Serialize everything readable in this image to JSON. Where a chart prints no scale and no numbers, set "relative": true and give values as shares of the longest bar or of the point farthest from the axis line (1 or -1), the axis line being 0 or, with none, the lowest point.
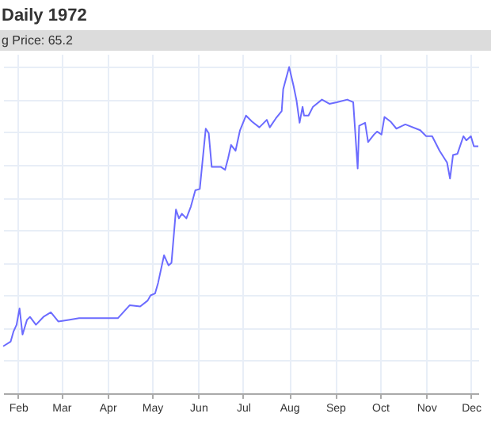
{
  "chart_data": {
    "type": "line",
    "title": "Daily 1972",
    "annotations": [
      "g Price: 65.2"
    ],
    "relative": true,
    "grid": true,
    "xlim": [
      "1972-01-22",
      "1972-12-06"
    ],
    "xticks": [
      {
        "value": "1972-02-01",
        "label": "Feb"
      },
      {
        "value": "1972-03-01",
        "label": "Mar"
      },
      {
        "value": "1972-04-01",
        "label": "Apr"
      },
      {
        "value": "1972-05-01",
        "label": "May"
      },
      {
        "value": "1972-06-01",
        "label": "Jun"
      },
      {
        "value": "1972-07-01",
        "label": "Jul"
      },
      {
        "value": "1972-08-01",
        "label": "Aug"
      },
      {
        "value": "1972-09-01",
        "label": "Sep"
      },
      {
        "value": "1972-10-01",
        "label": "Oct"
      },
      {
        "value": "1972-11-01",
        "label": "Nov"
      },
      {
        "value": "1972-12-01",
        "label": "Dec"
      }
    ],
    "x": [
      "1972-01-22",
      "1972-01-27",
      "1972-01-29",
      "1972-01-31",
      "1972-02-02",
      "1972-02-04",
      "1972-02-07",
      "1972-02-09",
      "1972-02-13",
      "1972-02-18",
      "1972-02-23",
      "1972-02-28",
      "1972-03-06",
      "1972-03-13",
      "1972-03-31",
      "1972-04-08",
      "1972-04-16",
      "1972-04-23",
      "1972-04-28",
      "1972-04-30",
      "1972-05-03",
      "1972-05-05",
      "1972-05-09",
      "1972-05-12",
      "1972-05-14",
      "1972-05-17",
      "1972-05-19",
      "1972-05-21",
      "1972-05-24",
      "1972-05-27",
      "1972-05-30",
      "1972-06-02",
      "1972-06-06",
      "1972-06-08",
      "1972-06-10",
      "1972-06-16",
      "1972-06-19",
      "1972-06-21",
      "1972-06-23",
      "1972-06-26",
      "1972-06-29",
      "1972-07-03",
      "1972-07-07",
      "1972-07-12",
      "1972-07-17",
      "1972-07-19",
      "1972-07-23",
      "1972-07-27",
      "1972-07-28",
      "1972-08-01",
      "1972-08-04",
      "1972-08-06",
      "1972-08-08",
      "1972-08-10",
      "1972-08-11",
      "1972-08-14",
      "1972-08-17",
      "1972-08-23",
      "1972-08-28",
      "1972-09-02",
      "1972-09-09",
      "1972-09-13",
      "1972-09-16",
      "1972-09-17",
      "1972-09-21",
      "1972-09-23",
      "1972-09-27",
      "1972-09-29",
      "1972-10-02",
      "1972-10-04",
      "1972-10-08",
      "1972-10-12",
      "1972-10-18",
      "1972-10-28",
      "1972-11-01",
      "1972-11-05",
      "1972-11-10",
      "1972-11-15",
      "1972-11-17",
      "1972-11-19",
      "1972-11-22",
      "1972-11-26",
      "1972-11-28",
      "1972-12-01",
      "1972-12-03",
      "1972-12-06"
    ],
    "series": [
      {
        "color": "#6b6bff",
        "values": [
          0.144,
          0.158,
          0.19,
          0.21,
          0.26,
          0.18,
          0.225,
          0.234,
          0.21,
          0.234,
          0.248,
          0.22,
          0.225,
          0.23,
          0.23,
          0.23,
          0.27,
          0.266,
          0.284,
          0.3,
          0.306,
          0.338,
          0.423,
          0.392,
          0.4,
          0.563,
          0.536,
          0.55,
          0.536,
          0.572,
          0.622,
          0.626,
          0.811,
          0.797,
          0.694,
          0.694,
          0.685,
          0.72,
          0.761,
          0.743,
          0.806,
          0.851,
          0.833,
          0.815,
          0.838,
          0.815,
          0.842,
          0.865,
          0.932,
          1,
          0.941,
          0.896,
          0.829,
          0.878,
          0.851,
          0.851,
          0.878,
          0.9,
          0.887,
          0.892,
          0.9,
          0.892,
          0.689,
          0.82,
          0.829,
          0.77,
          0.793,
          0.802,
          0.793,
          0.847,
          0.833,
          0.811,
          0.824,
          0.806,
          0.788,
          0.788,
          0.743,
          0.707,
          0.658,
          0.73,
          0.734,
          0.788,
          0.775,
          0.788,
          0.757,
          0.757
        ]
      }
    ]
  }
}
